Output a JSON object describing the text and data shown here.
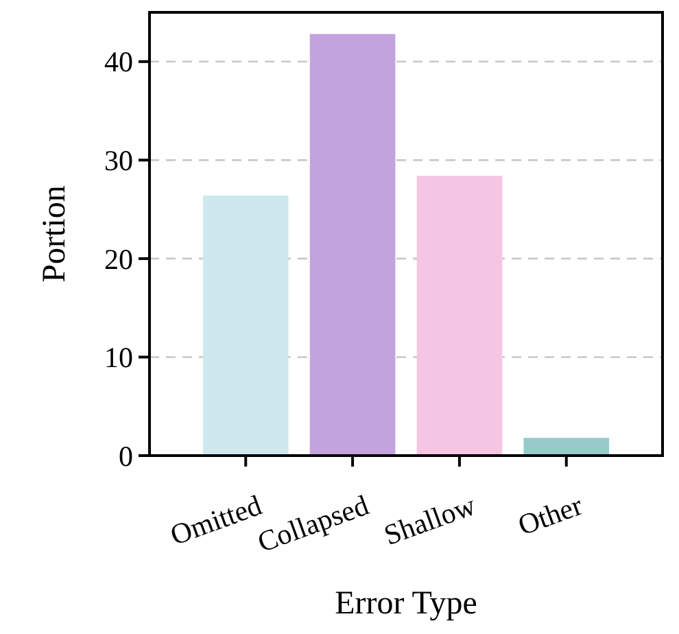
{
  "chart_data": {
    "type": "bar",
    "xlabel": "Error Type",
    "ylabel": "Portion",
    "categories": [
      "Omitted",
      "Collapsed",
      "Shallow",
      "Other"
    ],
    "values": [
      26.4,
      42.8,
      28.4,
      1.8
    ],
    "colors": [
      "#cfe8ef",
      "#c3a3dd",
      "#f4c6e3",
      "#96cbca"
    ],
    "ylim": [
      0,
      45
    ],
    "yticks": [
      0,
      10,
      20,
      30,
      40
    ],
    "grid": "y"
  }
}
